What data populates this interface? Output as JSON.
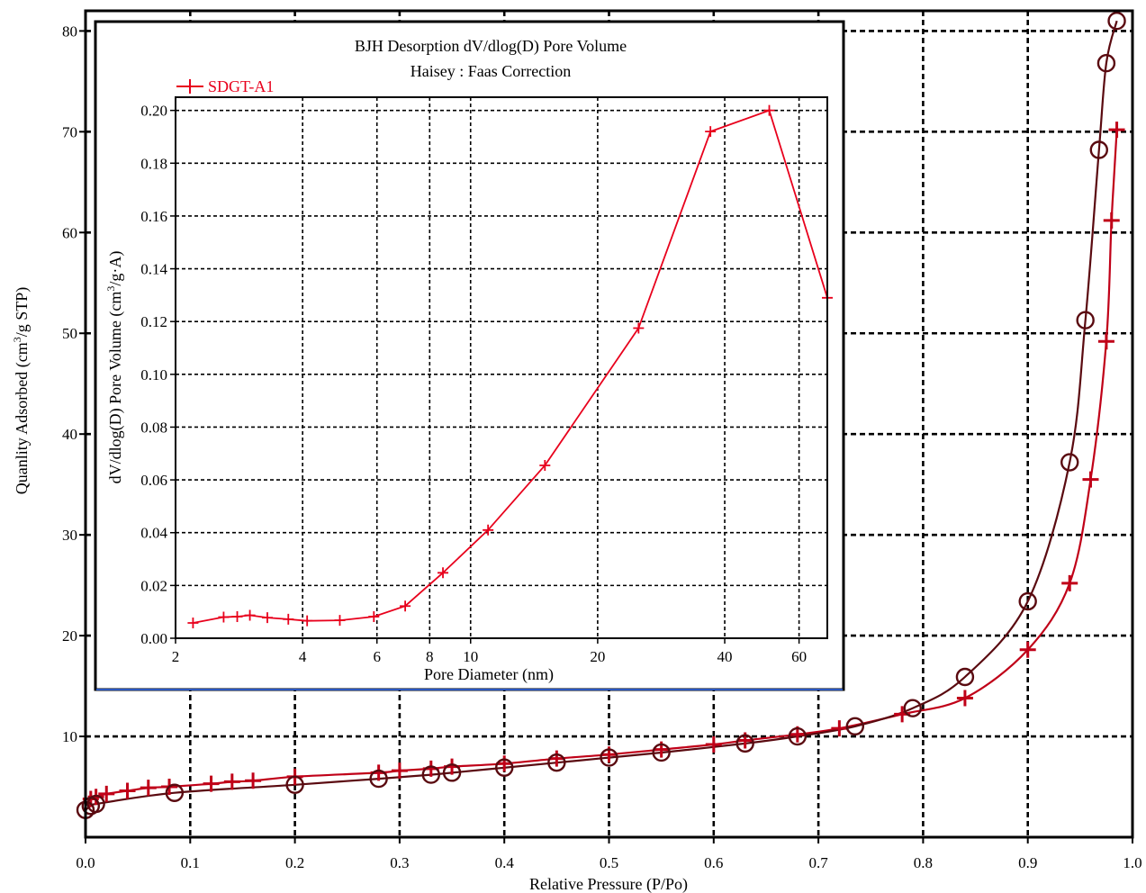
{
  "colors": {
    "adsorption": "#c00018",
    "desorption": "#5a0a10",
    "inset_series": "#e8001c",
    "inset_border": "#000000",
    "inset_bottom_accent": "#2a56c0"
  },
  "chart_data": [
    {
      "type": "scatter",
      "title": "",
      "xlabel": "Relative Pressure (P/Po)",
      "ylabel": "Quanlity Adsorbed (cm³/g STP)",
      "ylabel_parts": {
        "pre": "Quanlity Adsorbed (cm",
        "sup": "3",
        "post": "/g STP)"
      },
      "xlim": [
        0,
        1.0
      ],
      "ylim": [
        0,
        82
      ],
      "xticks": [
        0.0,
        0.1,
        0.2,
        0.3,
        0.4,
        0.5,
        0.6,
        0.7,
        0.8,
        0.9,
        1.0
      ],
      "xtick_labels": [
        "0.0",
        "0.1",
        "0.2",
        "0.3",
        "0.4",
        "0.5",
        "0.6",
        "0.7",
        "0.8",
        "0.9",
        "1.0"
      ],
      "yticks": [
        10,
        20,
        30,
        40,
        50,
        60,
        70,
        80
      ],
      "ytick_labels": [
        "10",
        "20",
        "30",
        "40",
        "50",
        "60",
        "70",
        "80"
      ],
      "grid": true,
      "series": [
        {
          "marker": "plus",
          "x": [
            0.005,
            0.01,
            0.02,
            0.04,
            0.06,
            0.08,
            0.12,
            0.14,
            0.16,
            0.2,
            0.28,
            0.3,
            0.33,
            0.35,
            0.4,
            0.45,
            0.5,
            0.55,
            0.6,
            0.63,
            0.68,
            0.72,
            0.78,
            0.84,
            0.9,
            0.94,
            0.96,
            0.975,
            0.98,
            0.985
          ],
          "y": [
            3.8,
            4.0,
            4.3,
            4.6,
            4.9,
            5.0,
            5.3,
            5.5,
            5.6,
            6.0,
            6.4,
            6.6,
            6.8,
            7.0,
            7.3,
            7.8,
            8.2,
            8.7,
            9.2,
            9.6,
            10.2,
            10.8,
            12.2,
            13.8,
            18.6,
            25.2,
            35.5,
            49.2,
            61.2,
            70.2
          ]
        },
        {
          "marker": "circle",
          "x": [
            0.0,
            0.005,
            0.01,
            0.085,
            0.2,
            0.28,
            0.33,
            0.35,
            0.4,
            0.45,
            0.5,
            0.55,
            0.63,
            0.68,
            0.735,
            0.79,
            0.84,
            0.9,
            0.94,
            0.955,
            0.968,
            0.975,
            0.985
          ],
          "y": [
            2.7,
            3.1,
            3.3,
            4.4,
            5.2,
            5.8,
            6.2,
            6.4,
            6.9,
            7.4,
            7.9,
            8.4,
            9.3,
            10.0,
            11.0,
            12.8,
            15.9,
            23.4,
            37.2,
            51.3,
            68.2,
            76.8,
            81.0
          ]
        }
      ]
    },
    {
      "type": "line",
      "title": "BJH Desorption dV/dlog(D) Pore Volume",
      "subtitle": "Haisey : Faas Correction",
      "xlabel": "Pore Diameter (nm)",
      "ylabel": "dV/dlog(D) Pore Volume (cm³/g·A)",
      "ylabel_parts": {
        "pre": "dV/dlog(D) Pore Volume (cm",
        "sup": "3",
        "post": "/g·A)"
      },
      "x_scale": "log",
      "xlim": [
        2,
        70
      ],
      "ylim": [
        0,
        0.205
      ],
      "xticks": [
        2,
        4,
        6,
        8,
        10,
        20,
        40,
        60
      ],
      "xtick_labels": [
        "2",
        "4",
        "6",
        "8",
        "10",
        "20",
        "40",
        "60"
      ],
      "yticks": [
        0.0,
        0.02,
        0.04,
        0.06,
        0.08,
        0.1,
        0.12,
        0.14,
        0.16,
        0.18,
        0.2
      ],
      "ytick_labels": [
        "0.00",
        "0.02",
        "0.04",
        "0.06",
        "0.08",
        "0.10",
        "0.12",
        "0.14",
        "0.16",
        "0.18",
        "0.20"
      ],
      "grid": true,
      "legend": "top-left",
      "series": [
        {
          "name": "SDGT-A1",
          "x": [
            2.2,
            2.6,
            2.8,
            3.0,
            3.3,
            3.7,
            4.1,
            4.9,
            5.9,
            7.0,
            8.6,
            11.0,
            15.0,
            25.0,
            37.0,
            51.0,
            70.0
          ],
          "y": [
            0.0058,
            0.008,
            0.0082,
            0.0087,
            0.0078,
            0.0072,
            0.0066,
            0.0068,
            0.0082,
            0.0122,
            0.0248,
            0.041,
            0.0655,
            0.1175,
            0.192,
            0.2,
            0.129
          ]
        }
      ]
    }
  ]
}
